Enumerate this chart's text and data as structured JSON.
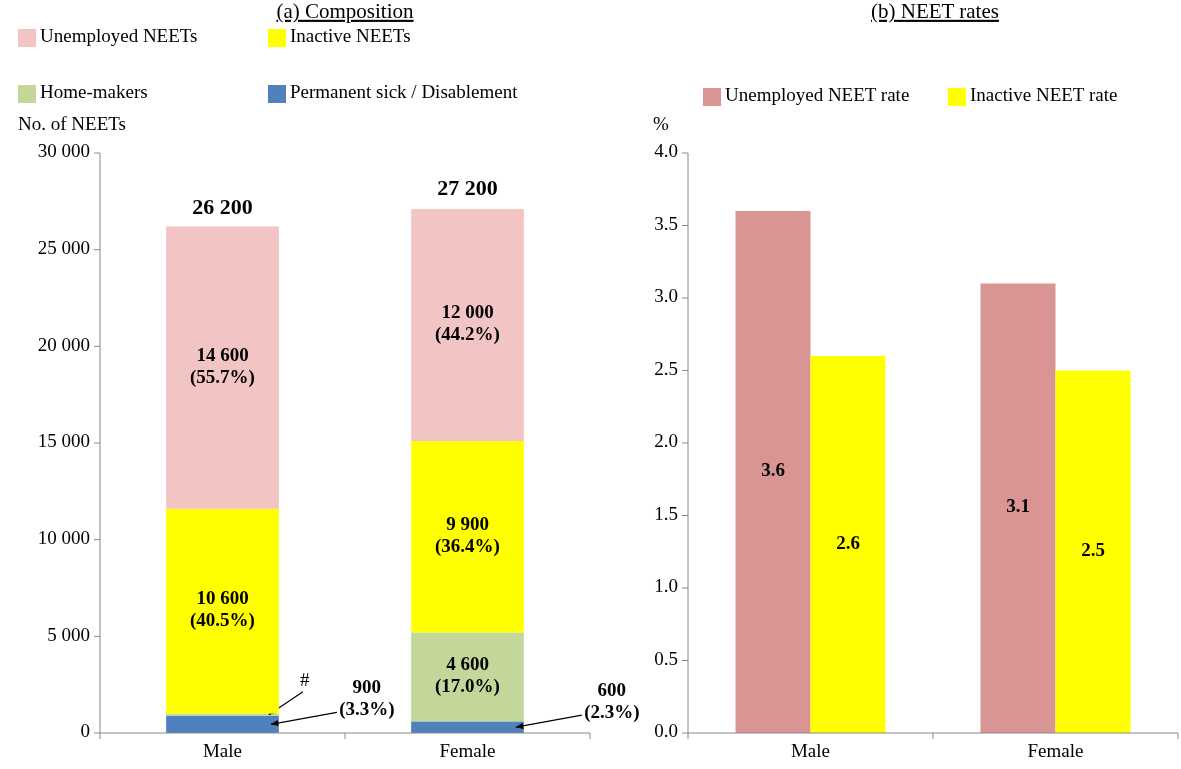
{
  "chart_data": [
    {
      "type": "bar",
      "title": "(a) Composition",
      "ylabel": "No. of NEETs",
      "stacked": true,
      "legend": "top",
      "categories": [
        "Male",
        "Female"
      ],
      "series": [
        {
          "name": "Permanent sick / Disablement",
          "color": "#4f81bd",
          "values": [
            900,
            600
          ],
          "value_labels": [
            "900\n(3.3%)",
            "600\n(2.3%)"
          ]
        },
        {
          "name": "Home-makers",
          "color": "#c4d79b",
          "values": [
            100,
            4600
          ],
          "value_labels": [
            "#",
            "4 600\n(17.0%)"
          ]
        },
        {
          "name": "Inactive NEETs",
          "color": "#ffff00",
          "values": [
            10600,
            9900
          ],
          "value_labels": [
            "10 600\n(40.5%)",
            "9 900\n(36.4%)"
          ]
        },
        {
          "name": "Unemployed NEETs",
          "color": "#f2c4c4",
          "values": [
            14600,
            12000
          ],
          "value_labels": [
            "14 600\n(55.7%)",
            "12 000\n(44.2%)"
          ]
        }
      ],
      "annotations": [
        {
          "text": "26 200",
          "x": "Male",
          "y": 26200
        },
        {
          "text": "27 200",
          "x": "Female",
          "y": 27200
        }
      ],
      "ylim": [
        0,
        30000
      ],
      "yticks": [
        0,
        {
          "value": 5000,
          "label": "5 000"
        },
        {
          "value": 10000,
          "label": "10 000"
        },
        {
          "value": 15000,
          "label": "15 000"
        },
        {
          "value": 20000,
          "label": "20 000"
        },
        {
          "value": 25000,
          "label": "25 000"
        },
        {
          "value": 30000,
          "label": "30 000"
        }
      ]
    },
    {
      "type": "bar",
      "title": "(b) NEET rates",
      "ylabel": "%",
      "legend": "top",
      "data_labels": true,
      "categories": [
        "Male",
        "Female"
      ],
      "series": [
        {
          "name": "Unemployed NEET rate",
          "color": "#d99594",
          "values": [
            3.6,
            3.1
          ]
        },
        {
          "name": "Inactive NEET rate",
          "color": "#ffff00",
          "values": [
            2.6,
            2.5
          ]
        }
      ],
      "ylim": [
        0,
        4
      ],
      "yticks": [
        {
          "value": 0,
          "label": "0.0"
        },
        {
          "value": 0.5,
          "label": "0.5"
        },
        {
          "value": 1,
          "label": "1.0"
        },
        {
          "value": 1.5,
          "label": "1.5"
        },
        {
          "value": 2,
          "label": "2.0"
        },
        {
          "value": 2.5,
          "label": "2.5"
        },
        {
          "value": 3,
          "label": "3.0"
        },
        {
          "value": 3.5,
          "label": "3.5"
        },
        {
          "value": 4,
          "label": "4.0"
        }
      ]
    }
  ]
}
